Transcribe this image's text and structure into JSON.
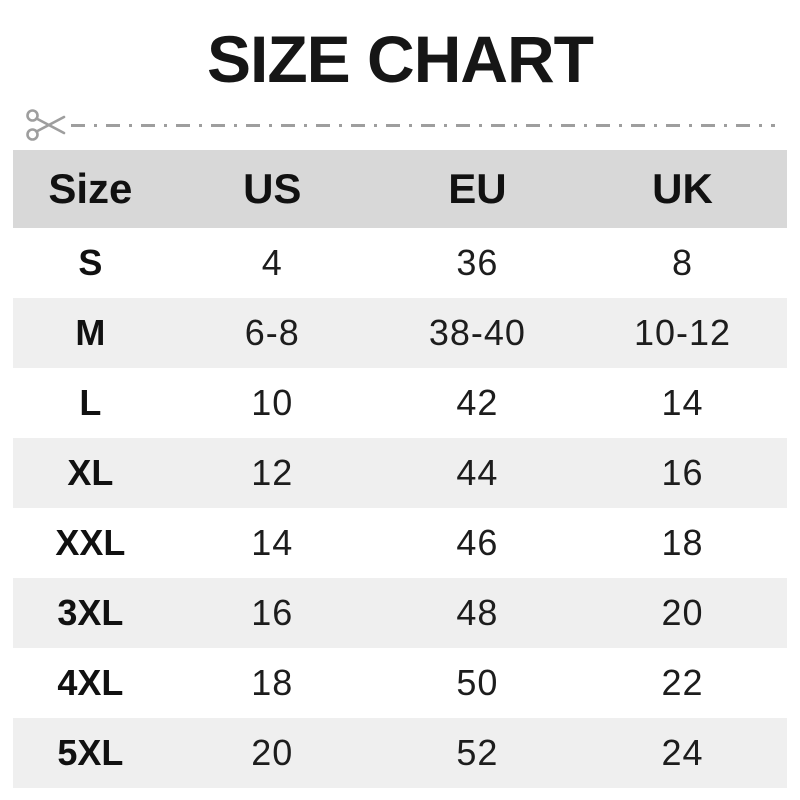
{
  "title": "SIZE CHART",
  "cut_line": {
    "icon": "scissors",
    "style": "dash-dot"
  },
  "table": {
    "headers": [
      "Size",
      "US",
      "EU",
      "UK"
    ],
    "rows": [
      [
        "S",
        "4",
        "36",
        "8"
      ],
      [
        "M",
        "6-8",
        "38-40",
        "10-12"
      ],
      [
        "L",
        "10",
        "42",
        "14"
      ],
      [
        "XL",
        "12",
        "44",
        "16"
      ],
      [
        "XXL",
        "14",
        "46",
        "18"
      ],
      [
        "3XL",
        "16",
        "48",
        "20"
      ],
      [
        "4XL",
        "18",
        "50",
        "22"
      ],
      [
        "5XL",
        "20",
        "52",
        "24"
      ]
    ]
  },
  "colors": {
    "title_text": "#161616",
    "header_bg": "#d8d8d8",
    "alt_row_bg": "#efefef",
    "body_text": "#1d1d1d",
    "cut_line_gray": "#9e9e9e"
  },
  "chart_data": {
    "type": "table",
    "title": "SIZE CHART",
    "columns": [
      "Size",
      "US",
      "EU",
      "UK"
    ],
    "rows": [
      [
        "S",
        "4",
        "36",
        "8"
      ],
      [
        "M",
        "6-8",
        "38-40",
        "10-12"
      ],
      [
        "L",
        "10",
        "42",
        "14"
      ],
      [
        "XL",
        "12",
        "44",
        "16"
      ],
      [
        "XXL",
        "14",
        "46",
        "18"
      ],
      [
        "3XL",
        "16",
        "48",
        "20"
      ],
      [
        "4XL",
        "18",
        "50",
        "22"
      ],
      [
        "5XL",
        "20",
        "52",
        "24"
      ]
    ]
  }
}
